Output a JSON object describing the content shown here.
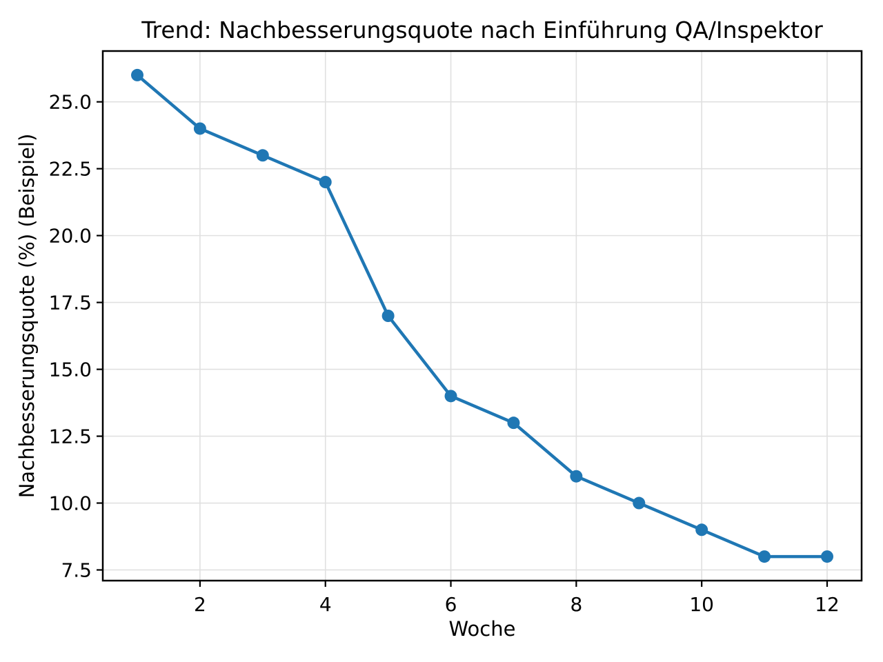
{
  "figure": {
    "background": "#ffffff"
  },
  "chart_data": {
    "type": "line",
    "title": "Trend: Nachbesserungsquote nach Einführung QA/Inspektor",
    "xlabel": "Woche",
    "ylabel": "Nachbesserungsquote (%) (Beispiel)",
    "x": [
      1,
      2,
      3,
      4,
      5,
      6,
      7,
      8,
      9,
      10,
      11,
      12
    ],
    "values": [
      26,
      24,
      23,
      22,
      17,
      14,
      13,
      11,
      10,
      9,
      8,
      8
    ],
    "xlim": [
      0.45,
      12.55
    ],
    "ylim": [
      7.1,
      26.9
    ],
    "xticks": [
      {
        "value": 2,
        "label": "2"
      },
      {
        "value": 4,
        "label": "4"
      },
      {
        "value": 6,
        "label": "6"
      },
      {
        "value": 8,
        "label": "8"
      },
      {
        "value": 10,
        "label": "10"
      },
      {
        "value": 12,
        "label": "12"
      }
    ],
    "yticks": [
      {
        "value": 7.5,
        "label": "7.5"
      },
      {
        "value": 10.0,
        "label": "10.0"
      },
      {
        "value": 12.5,
        "label": "12.5"
      },
      {
        "value": 15.0,
        "label": "15.0"
      },
      {
        "value": 17.5,
        "label": "17.5"
      },
      {
        "value": 20.0,
        "label": "20.0"
      },
      {
        "value": 22.5,
        "label": "22.5"
      },
      {
        "value": 25.0,
        "label": "25.0"
      }
    ],
    "grid": true,
    "legend": false,
    "line_color": "#1f77b4",
    "marker": "circle",
    "marker_color": "#1f77b4",
    "grid_color": "#e0e0e0",
    "spine_color": "#000000",
    "tick_label_color": "#000000",
    "background": "#ffffff"
  }
}
